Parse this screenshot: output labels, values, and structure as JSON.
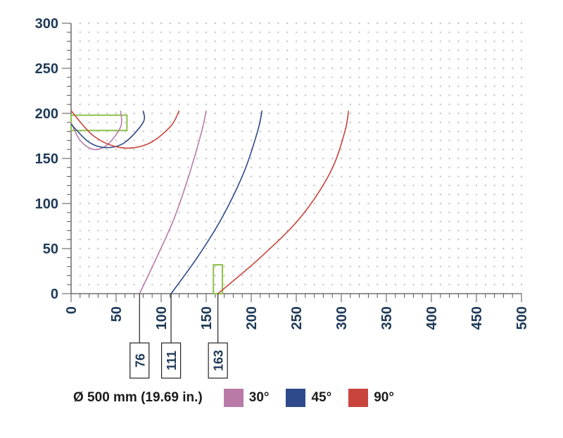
{
  "chart_data": {
    "type": "line",
    "title": "",
    "xlabel": "",
    "ylabel": "",
    "xlim": [
      0,
      500
    ],
    "ylim": [
      0,
      300
    ],
    "x_ticks": [
      "0",
      "50",
      "100",
      "150",
      "200",
      "250",
      "300",
      "350",
      "400",
      "450",
      "500"
    ],
    "y_ticks": [
      "0",
      "50",
      "100",
      "150",
      "200",
      "250",
      "300"
    ],
    "grid": "dotted",
    "series": [
      {
        "name": "30°",
        "color": "#b97aa8",
        "rising_curve": {
          "x": [
            76,
            95,
            115,
            132,
            145,
            150
          ],
          "y": [
            0,
            40,
            85,
            135,
            180,
            203
          ]
        },
        "dip_curve": {
          "x": [
            0,
            10,
            25,
            40,
            55,
            55
          ],
          "y": [
            190,
            170,
            160,
            165,
            185,
            203
          ]
        }
      },
      {
        "name": "45°",
        "color": "#2e4a8a",
        "rising_curve": {
          "x": [
            111,
            140,
            168,
            192,
            207,
            212
          ],
          "y": [
            0,
            40,
            85,
            135,
            180,
            203
          ]
        },
        "dip_curve": {
          "x": [
            0,
            20,
            40,
            60,
            80,
            80
          ],
          "y": [
            188,
            168,
            162,
            168,
            190,
            203
          ]
        }
      },
      {
        "name": "90°",
        "color": "#c9443c",
        "rising_curve": {
          "x": [
            163,
            210,
            255,
            288,
            304,
            308
          ],
          "y": [
            0,
            40,
            85,
            135,
            180,
            203
          ]
        },
        "dip_curve": {
          "x": [
            0,
            25,
            55,
            85,
            110,
            120
          ],
          "y": [
            203,
            175,
            162,
            166,
            185,
            203
          ]
        }
      }
    ],
    "callouts": [
      "76",
      "111",
      "163"
    ],
    "highlight_boxes": [
      {
        "x": [
          0,
          62
        ],
        "y": [
          181,
          198
        ],
        "color": "#8cc04a"
      },
      {
        "x": [
          158,
          168
        ],
        "y": [
          0,
          32
        ],
        "color": "#8cc04a"
      }
    ]
  },
  "legend": {
    "title": "Ø 500 mm (19.69 in.)",
    "items": [
      {
        "label": "30°",
        "color": "#b97aa8"
      },
      {
        "label": "45°",
        "color": "#2e4a8a"
      },
      {
        "label": "90°",
        "color": "#c9443c"
      }
    ]
  }
}
